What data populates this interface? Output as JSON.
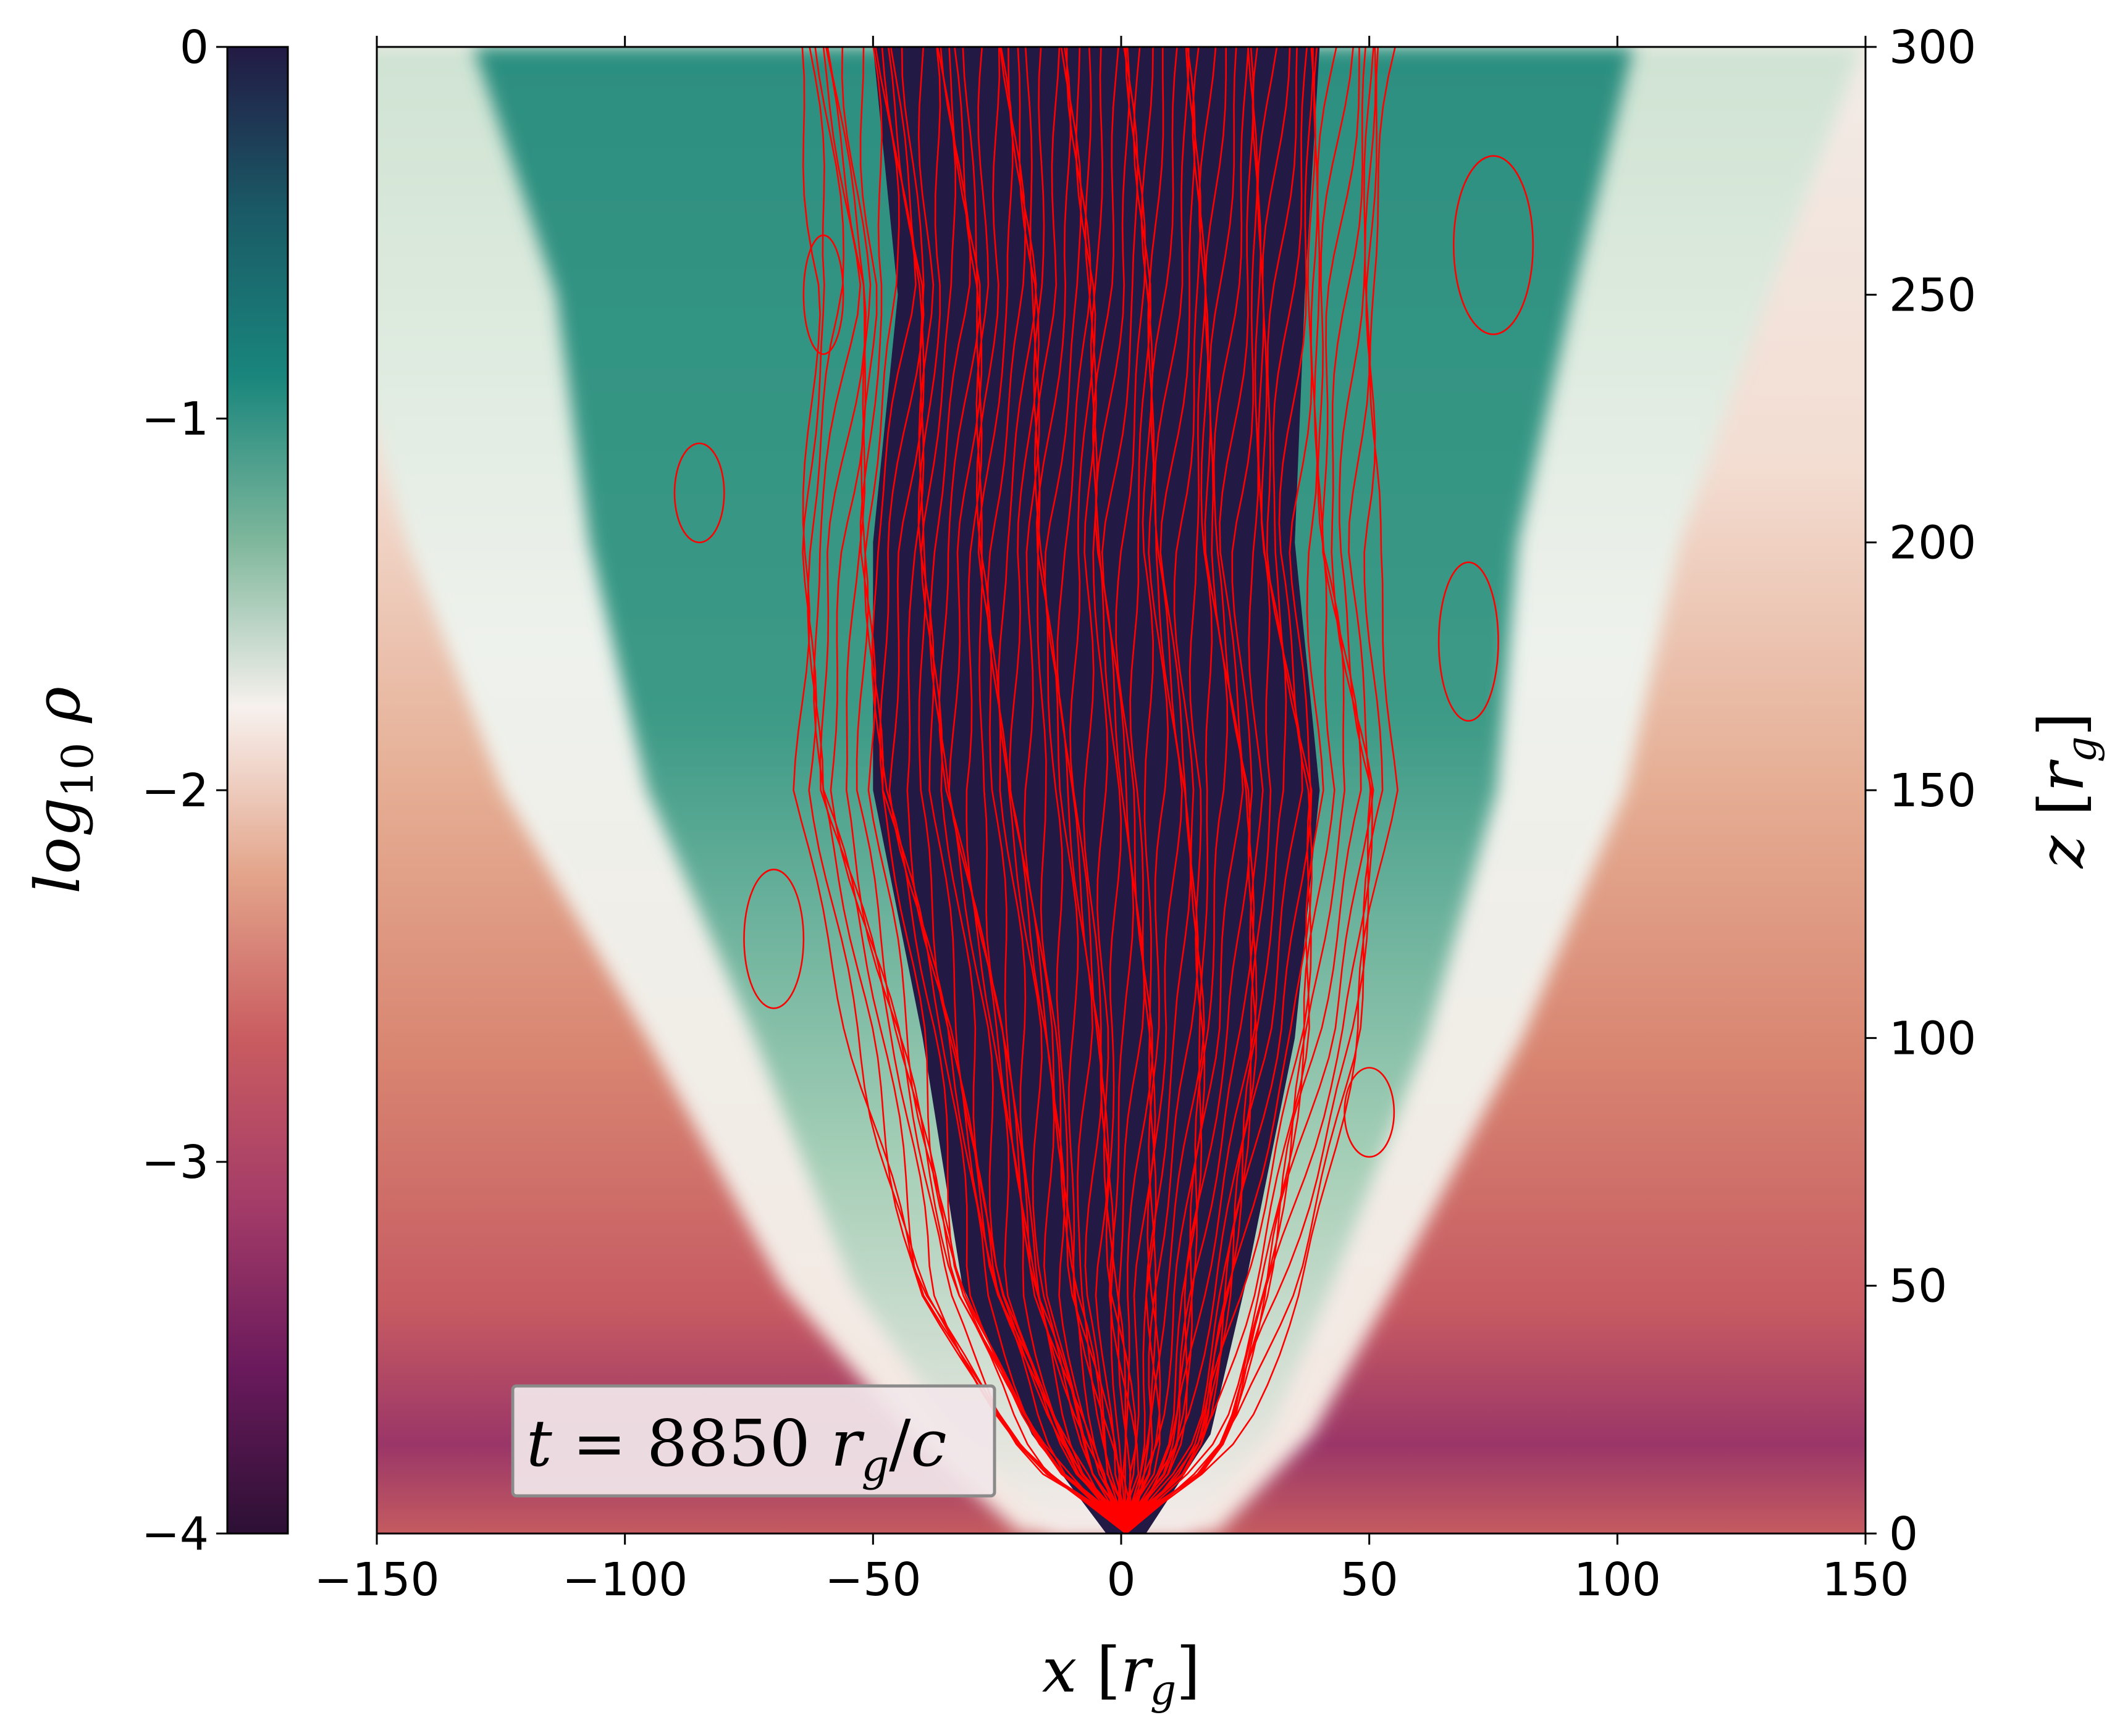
{
  "chart_data": {
    "type": "heatmap",
    "field": "log10 density with magnetic field lines",
    "xlabel": "x [r_g]",
    "ylabel": "z [r_g]",
    "xlim": [
      -150,
      150
    ],
    "ylim": [
      0,
      300
    ],
    "x_ticks": [
      "−150",
      "−100",
      "−50",
      "0",
      "50",
      "100",
      "150"
    ],
    "y_ticks": [
      "0",
      "50",
      "100",
      "150",
      "200",
      "250",
      "300"
    ],
    "colorbar": {
      "label": "log10 ρ",
      "range": [
        -4,
        0
      ],
      "ticks": [
        "0",
        "−1",
        "−2",
        "−3",
        "−4"
      ],
      "colors": [
        "#221a44",
        "#1a5a66",
        "#19867c",
        "#7fb79c",
        "#f7f1ee",
        "#e3a58b",
        "#c95c60",
        "#a43c68",
        "#6a1a5c",
        "#2c1034"
      ]
    },
    "annotation": "t = 8850 r_g/c",
    "funnel_left_edge": [
      [
        -3,
        0
      ],
      [
        -18,
        20
      ],
      [
        -32,
        50
      ],
      [
        -40,
        100
      ],
      [
        -50,
        150
      ],
      [
        -50,
        200
      ],
      [
        -45,
        250
      ],
      [
        -50,
        300
      ]
    ],
    "funnel_right_edge": [
      [
        5,
        0
      ],
      [
        18,
        20
      ],
      [
        25,
        50
      ],
      [
        35,
        100
      ],
      [
        40,
        150
      ],
      [
        35,
        200
      ],
      [
        37,
        250
      ],
      [
        40,
        300
      ]
    ],
    "field_line_color": "#ff0000"
  }
}
